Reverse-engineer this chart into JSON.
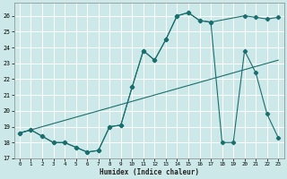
{
  "xlabel": "Humidex (Indice chaleur)",
  "bg_color": "#cce8e8",
  "grid_color": "#ffffff",
  "line_color": "#1a6e6e",
  "xlim": [
    -0.5,
    23.5
  ],
  "ylim": [
    17,
    26.8
  ],
  "xticks": [
    0,
    1,
    2,
    3,
    4,
    5,
    6,
    7,
    8,
    9,
    10,
    11,
    12,
    13,
    14,
    15,
    16,
    17,
    18,
    19,
    20,
    21,
    22,
    23
  ],
  "yticks": [
    17,
    18,
    19,
    20,
    21,
    22,
    23,
    24,
    25,
    26
  ],
  "line1_x": [
    0,
    1,
    2,
    3,
    4,
    5,
    6,
    7,
    8,
    9,
    10,
    11,
    12,
    13,
    14,
    15,
    16,
    17,
    18,
    19,
    20,
    21,
    22,
    23
  ],
  "line1_y": [
    18.6,
    18.8,
    18.4,
    18.0,
    18.0,
    17.7,
    17.4,
    17.5,
    19.0,
    19.1,
    21.5,
    23.8,
    23.2,
    24.5,
    26.0,
    26.2,
    25.7,
    25.6,
    18.0,
    18.0,
    23.8,
    22.4,
    19.8,
    18.3
  ],
  "line2_x": [
    0,
    1,
    2,
    3,
    4,
    5,
    6,
    7,
    8,
    9,
    10,
    11,
    12,
    13,
    14,
    15,
    16,
    17,
    20,
    21,
    22,
    23
  ],
  "line2_y": [
    18.6,
    18.8,
    18.4,
    18.0,
    18.0,
    17.7,
    17.4,
    17.5,
    19.0,
    19.1,
    21.5,
    23.8,
    23.2,
    24.5,
    26.0,
    26.2,
    25.7,
    25.6,
    26.0,
    25.9,
    25.8,
    25.9
  ],
  "line3_x": [
    0,
    23
  ],
  "line3_y": [
    18.6,
    23.2
  ]
}
